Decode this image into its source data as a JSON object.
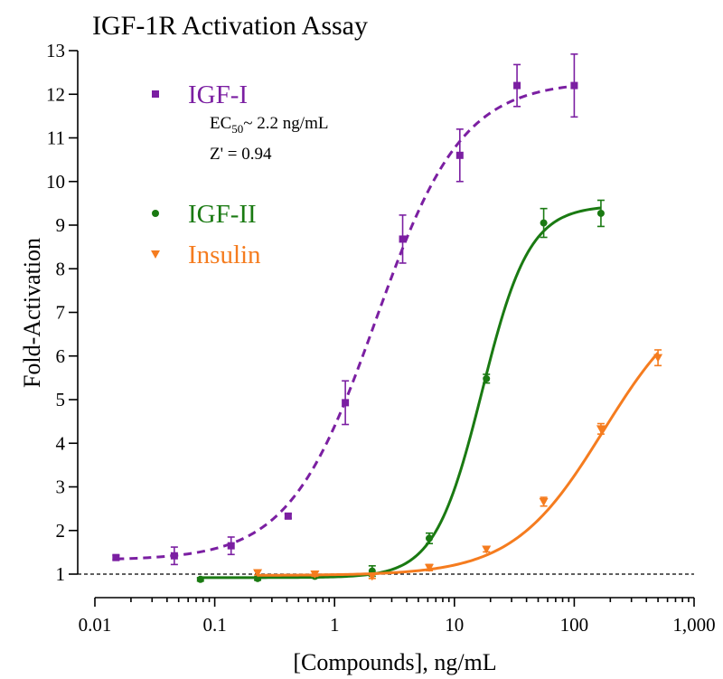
{
  "chart_data": {
    "type": "scatter",
    "title": "IGF-1R Activation Assay",
    "xlabel": "[Compounds], ng/mL",
    "ylabel": "Fold-Activation",
    "xscale": "log",
    "xlim": [
      0.01,
      1000
    ],
    "ylim": [
      1,
      13
    ],
    "x_ticks": [
      "0.01",
      "0.1",
      "1",
      "10",
      "100",
      "1,000"
    ],
    "y_ticks": [
      "1",
      "2",
      "3",
      "4",
      "5",
      "6",
      "7",
      "8",
      "9",
      "10",
      "11",
      "12",
      "13"
    ],
    "baseline": 1,
    "annotations": [
      "EC",
      "50",
      "~ 2.2 ng/mL",
      "Z' = 0.94"
    ],
    "series": [
      {
        "name": "IGF-I",
        "color": "#7b1fa2",
        "marker": "square",
        "line": "dashed",
        "x": [
          0.015,
          0.046,
          0.137,
          0.41,
          1.23,
          3.7,
          11.1,
          33.3,
          100
        ],
        "y": [
          1.38,
          1.42,
          1.65,
          2.33,
          4.93,
          8.68,
          10.6,
          12.2,
          12.2
        ],
        "err": [
          0.05,
          0.2,
          0.2,
          0.05,
          0.5,
          0.55,
          0.6,
          0.48,
          0.72
        ],
        "fit": {
          "bottom": 1.32,
          "top": 12.3,
          "ec50": 2.2,
          "hill": 1.2
        }
      },
      {
        "name": "IGF-II",
        "color": "#1a7a12",
        "marker": "circle",
        "line": "solid",
        "x": [
          0.076,
          0.228,
          0.685,
          2.06,
          6.17,
          18.5,
          55.6,
          167
        ],
        "y": [
          0.88,
          0.9,
          0.95,
          1.07,
          1.82,
          5.48,
          9.05,
          9.27
        ],
        "err": [
          0.04,
          0.04,
          0.04,
          0.12,
          0.12,
          0.1,
          0.33,
          0.3
        ],
        "fit": {
          "bottom": 0.92,
          "top": 9.45,
          "ec50": 17,
          "hill": 2.2
        }
      },
      {
        "name": "Insulin",
        "color": "#f57c1f",
        "marker": "triangle-down",
        "line": "solid",
        "x": [
          0.228,
          0.685,
          2.06,
          6.17,
          18.5,
          55.6,
          167,
          500
        ],
        "y": [
          1.03,
          1.0,
          0.95,
          1.15,
          1.57,
          2.66,
          4.33,
          5.96
        ],
        "err": [
          0.05,
          0.05,
          0.05,
          0.07,
          0.06,
          0.1,
          0.12,
          0.18
        ],
        "fit": {
          "bottom": 0.97,
          "top": 7.6,
          "ec50": 175,
          "hill": 1.15
        }
      }
    ]
  }
}
